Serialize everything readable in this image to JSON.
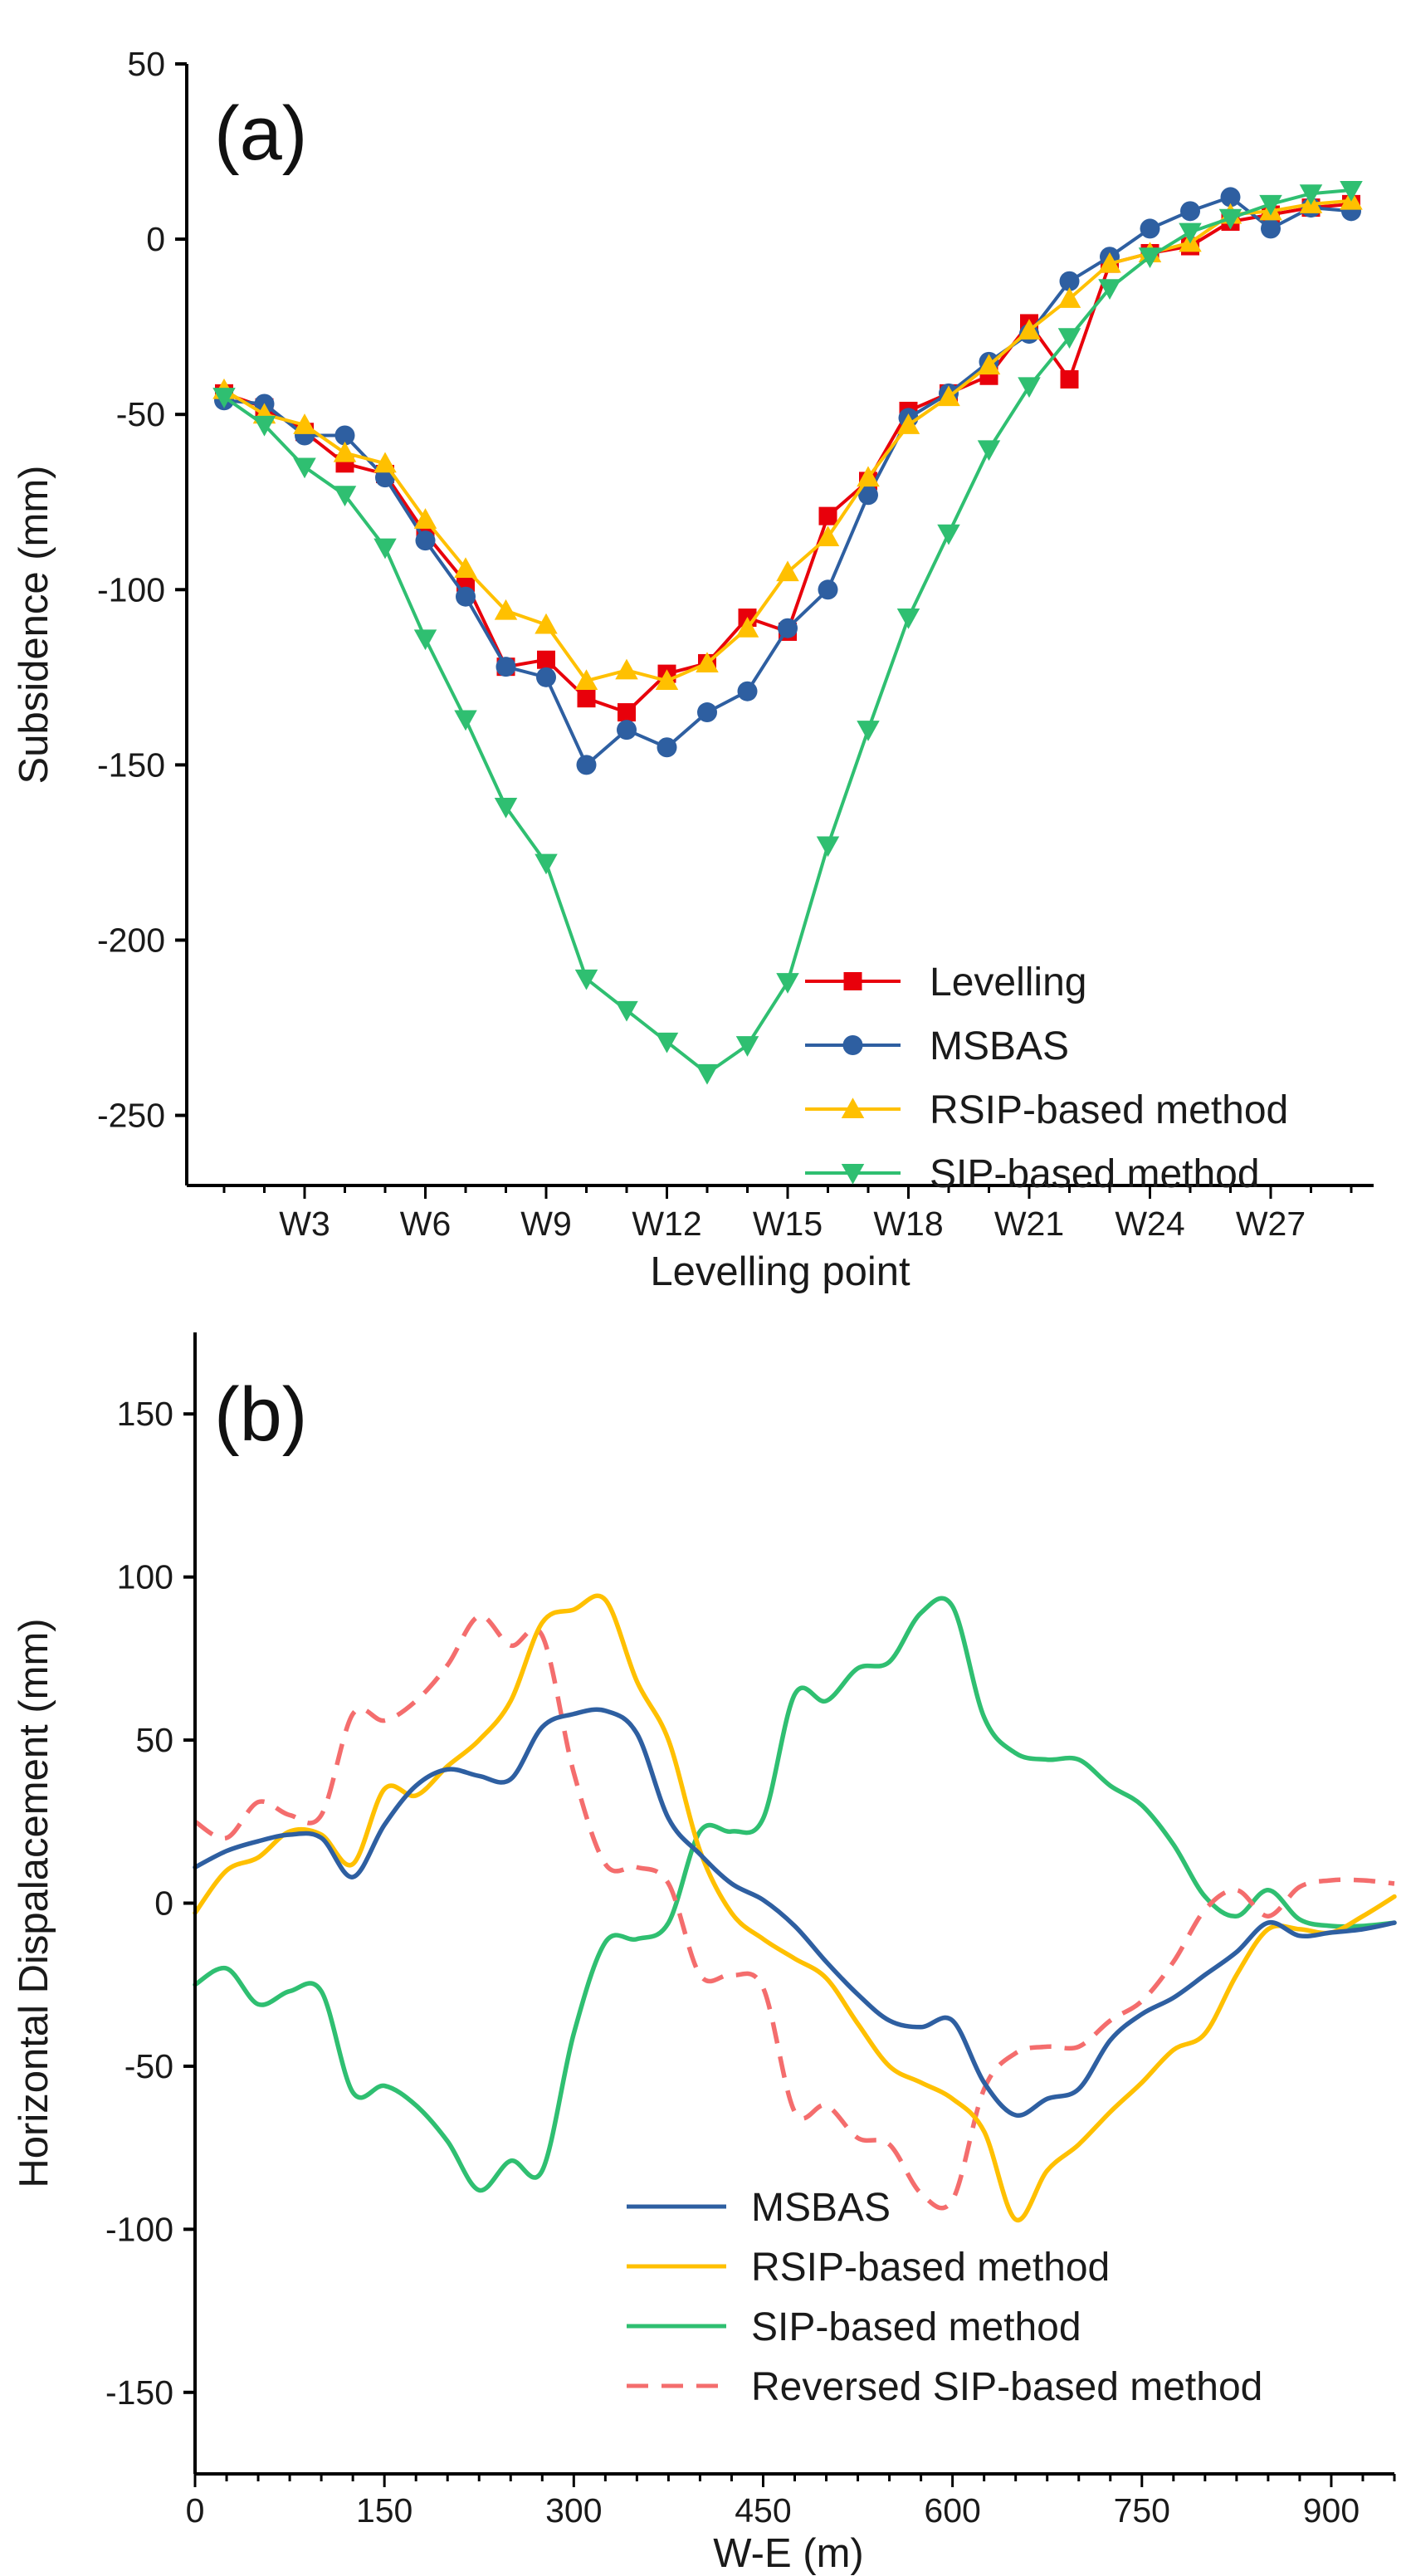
{
  "chart_data": [
    {
      "type": "line",
      "panel_label": "(a)",
      "title": "",
      "xlabel": "Levelling point",
      "ylabel": "Subsidence (mm)",
      "ylim": [
        -270,
        50
      ],
      "yticks": [
        50,
        0,
        -50,
        -100,
        -150,
        -200,
        -250
      ],
      "categories": [
        "W1",
        "W2",
        "W3",
        "W4",
        "W5",
        "W6",
        "W7",
        "W8",
        "W9",
        "W10",
        "W11",
        "W12",
        "W13",
        "W14",
        "W15",
        "W16",
        "W17",
        "W18",
        "W19",
        "W20",
        "W21",
        "W22",
        "W23",
        "W24",
        "W25",
        "W26",
        "W27",
        "W28",
        "W29"
      ],
      "xtick_labels": [
        "W3",
        "W6",
        "W9",
        "W12",
        "W15",
        "W18",
        "W21",
        "W24",
        "W27"
      ],
      "legend_position": "bottom-right",
      "series": [
        {
          "name": "Levelling",
          "color": "#e8000b",
          "marker": "square",
          "values": [
            -44,
            -48,
            -55,
            -64,
            -67,
            -84,
            -98,
            -122,
            -120,
            -131,
            -135,
            -124,
            -121,
            -108,
            -112,
            -79,
            -69,
            -49,
            -44,
            -39,
            -24,
            -40,
            -7,
            -4,
            -2,
            5,
            7,
            9,
            10
          ]
        },
        {
          "name": "MSBAS",
          "color": "#2e5fa1",
          "marker": "circle",
          "values": [
            -46,
            -47,
            -56,
            -56,
            -68,
            -86,
            -102,
            -122,
            -125,
            -150,
            -140,
            -145,
            -135,
            -129,
            -111,
            -100,
            -73,
            -51,
            -44,
            -35,
            -27,
            -12,
            -5,
            3,
            8,
            12,
            3,
            9,
            8
          ]
        },
        {
          "name": "RSIP-based method",
          "color": "#ffc000",
          "marker": "triangle-up",
          "values": [
            -43,
            -50,
            -53,
            -61,
            -64,
            -80,
            -94,
            -106,
            -110,
            -126,
            -123,
            -126,
            -121,
            -111,
            -95,
            -85,
            -68,
            -53,
            -45,
            -36,
            -26,
            -17,
            -7,
            -4,
            -1,
            7,
            8,
            10,
            11
          ]
        },
        {
          "name": "SIP-based method",
          "color": "#2fbf71",
          "marker": "triangle-down",
          "values": [
            -45,
            -53,
            -65,
            -73,
            -88,
            -114,
            -137,
            -162,
            -178,
            -211,
            -220,
            -229,
            -238,
            -230,
            -212,
            -173,
            -140,
            -108,
            -84,
            -60,
            -42,
            -28,
            -14,
            -5,
            2,
            6,
            10,
            13,
            14
          ]
        }
      ]
    },
    {
      "type": "line",
      "panel_label": "(b)",
      "title": "",
      "xlabel": "W-E (m)",
      "ylabel": "Horizontal Dispalacement (mm)",
      "xlim": [
        0,
        950
      ],
      "ylim": [
        -175,
        175
      ],
      "xticks": [
        0,
        150,
        300,
        450,
        600,
        750,
        900
      ],
      "yticks": [
        150,
        100,
        50,
        0,
        -50,
        -100,
        -150
      ],
      "legend_position": "bottom-right",
      "x": [
        0,
        25,
        50,
        75,
        100,
        125,
        150,
        175,
        200,
        225,
        250,
        275,
        300,
        325,
        350,
        375,
        400,
        425,
        450,
        475,
        500,
        525,
        550,
        575,
        600,
        625,
        650,
        675,
        700,
        725,
        750,
        775,
        800,
        825,
        850,
        875,
        900,
        925,
        950
      ],
      "series": [
        {
          "name": "MSBAS",
          "color": "#2e5fa1",
          "dash": "solid",
          "values": [
            11,
            16,
            19,
            21,
            20,
            8,
            24,
            36,
            41,
            39,
            38,
            54,
            58,
            59,
            52,
            26,
            15,
            6,
            1,
            -7,
            -18,
            -28,
            -36,
            -38,
            -36,
            -55,
            -65,
            -60,
            -57,
            -42,
            -34,
            -29,
            -22,
            -15,
            -6,
            -10,
            -9,
            -8,
            -6
          ]
        },
        {
          "name": "RSIP-based method",
          "color": "#ffc000",
          "dash": "solid",
          "values": [
            -3,
            10,
            14,
            22,
            21,
            12,
            35,
            33,
            42,
            50,
            62,
            86,
            90,
            93,
            68,
            50,
            16,
            -3,
            -11,
            -17,
            -23,
            -37,
            -50,
            -55,
            -60,
            -70,
            -97,
            -82,
            -74,
            -64,
            -55,
            -45,
            -40,
            -22,
            -8,
            -8,
            -9,
            -4,
            2
          ]
        },
        {
          "name": "SIP-based method",
          "color": "#2fbf71",
          "dash": "solid",
          "values": [
            -25,
            -20,
            -31,
            -27,
            -27,
            -58,
            -56,
            -62,
            -73,
            -88,
            -79,
            -82,
            -40,
            -12,
            -11,
            -6,
            22,
            22,
            26,
            64,
            62,
            72,
            74,
            89,
            91,
            57,
            46,
            44,
            44,
            36,
            30,
            18,
            2,
            -4,
            4,
            -5,
            -7,
            -7,
            -6
          ]
        },
        {
          "name": "Reversed SIP-based method",
          "color": "#f46d6d",
          "dash": "dashed",
          "values": [
            25,
            20,
            31,
            27,
            27,
            58,
            56,
            62,
            73,
            88,
            79,
            82,
            40,
            12,
            11,
            6,
            -22,
            -22,
            -26,
            -64,
            -62,
            -72,
            -74,
            -89,
            -91,
            -57,
            -46,
            -44,
            -44,
            -36,
            -30,
            -18,
            -2,
            4,
            -4,
            5,
            7,
            7,
            6
          ]
        }
      ]
    }
  ]
}
